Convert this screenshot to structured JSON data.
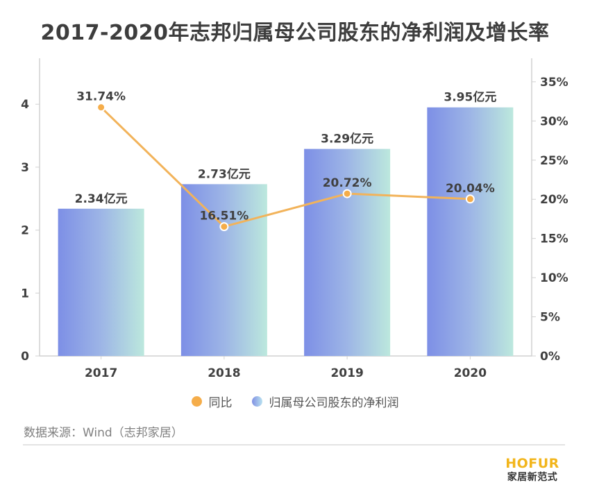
{
  "chart_data": {
    "type": "bar",
    "title": "2017-2020年志邦归属母公司股东的净利润及增长率",
    "categories": [
      "2017",
      "2018",
      "2019",
      "2020"
    ],
    "series": [
      {
        "name": "归属母公司股东的净利润",
        "type": "bar",
        "axis": "left",
        "values": [
          2.34,
          2.73,
          3.29,
          3.95
        ],
        "labels": [
          "2.34亿元",
          "2.73亿元",
          "3.29亿元",
          "3.95亿元"
        ],
        "color_start": "#7d8fe6",
        "color_end": "#bce8dd"
      },
      {
        "name": "同比",
        "type": "line",
        "axis": "right",
        "values": [
          31.74,
          16.51,
          20.72,
          20.04
        ],
        "labels": [
          "31.74%",
          "16.51%",
          "20.72%",
          "20.04%"
        ],
        "color": "#f2b35a"
      }
    ],
    "y_left": {
      "ylim": [
        0,
        4.73
      ],
      "ticks": [
        0,
        1,
        2,
        3,
        4
      ],
      "tick_labels": [
        "0",
        "1",
        "2",
        "3",
        "4"
      ]
    },
    "y_right": {
      "ylim": [
        0,
        38
      ],
      "ticks": [
        0,
        5,
        10,
        15,
        20,
        25,
        30,
        35
      ],
      "tick_labels": [
        "0%",
        "5%",
        "10%",
        "15%",
        "20%",
        "25%",
        "30%",
        "35%"
      ]
    },
    "xlabel": "",
    "ylabel": "",
    "grid": false,
    "legend": {
      "position": "bottom",
      "entries": [
        "同比",
        "归属母公司股东的净利润"
      ]
    }
  },
  "source": "数据来源：Wind（志邦家居）",
  "logo": {
    "en": "HOFUR",
    "cn": "家居新范式"
  },
  "colors": {
    "text": "#404040",
    "axis": "#d0d0d0"
  }
}
